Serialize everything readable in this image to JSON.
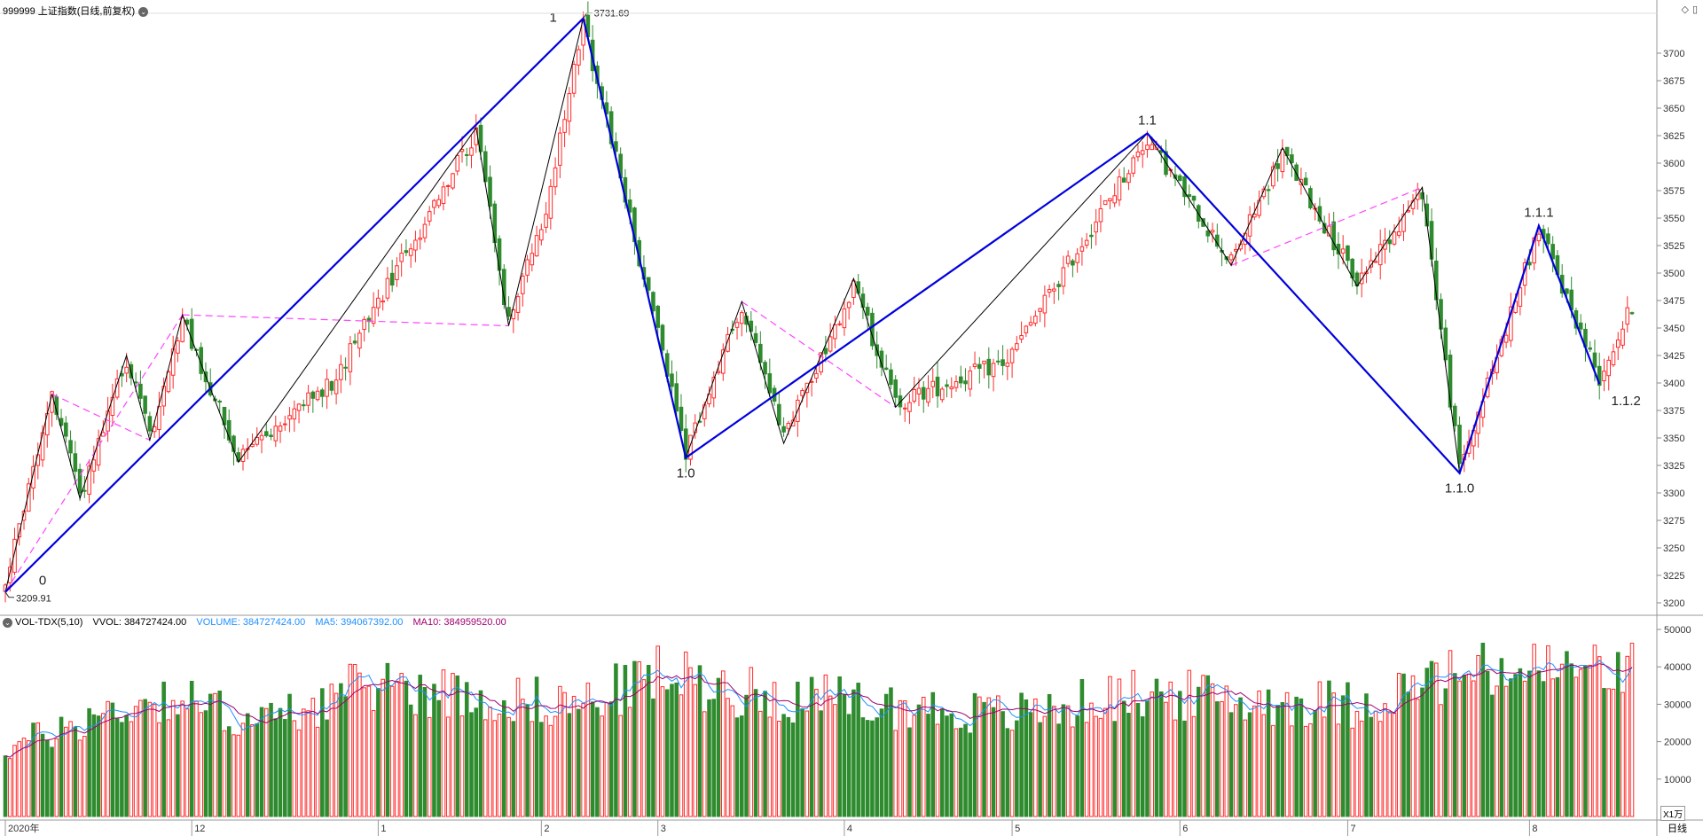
{
  "header": {
    "title": "999999 上证指数(日线,前复权)",
    "dropdown_icon": "chevron-down-icon",
    "right_icons": [
      "diamond-icon",
      "panel-icon"
    ]
  },
  "volume_header": {
    "indicator": "VOL-TDX(5,10)",
    "vvol": "VVOL: 384727424.00",
    "volume": "VOLUME: 384727424.00",
    "ma5": "MA5: 394067392.00",
    "ma10": "MA10: 384959520.00"
  },
  "colors": {
    "up": "#ff2a2a",
    "down": "#2e8b2e",
    "wave_primary": "#0000dd",
    "wave_minor": "#000000",
    "channel": "#ff44ff",
    "ma5": "#1e90ff",
    "ma10": "#a0006e",
    "grid": "#c8c8c8"
  },
  "chart_data": {
    "type": "candlestick",
    "price_axis": {
      "min": 3200,
      "max": 3725,
      "ticks": [
        3200,
        3225,
        3250,
        3275,
        3300,
        3325,
        3350,
        3375,
        3400,
        3425,
        3450,
        3475,
        3500,
        3525,
        3550,
        3575,
        3600,
        3625,
        3650,
        3675,
        3700
      ]
    },
    "volume_axis": {
      "min": 0,
      "max": 50000,
      "ticks": [
        10000,
        20000,
        30000,
        40000,
        50000
      ],
      "unit": "X1万"
    },
    "x_axis_labels": [
      "2020年",
      "12",
      "1",
      "2",
      "3",
      "4",
      "5",
      "6",
      "7",
      "8"
    ],
    "x_axis_label_bars": [
      0,
      40,
      80,
      115,
      140,
      180,
      216,
      252,
      288,
      327
    ],
    "period": "日线",
    "bar_count": 350,
    "price_labels": [
      {
        "text": "3731.69",
        "bar": 124
      },
      {
        "text": "3209.91",
        "bar": 0
      }
    ],
    "wave_pivots_primary": [
      {
        "label": "0",
        "bar": 0,
        "price": 3209.91
      },
      {
        "label": "1",
        "bar": 124,
        "price": 3731.69
      },
      {
        "label": "1.0",
        "bar": 146,
        "price": 3332
      },
      {
        "label": "1.1",
        "bar": 245,
        "price": 3627
      },
      {
        "label": "1.1.0",
        "bar": 312,
        "price": 3318
      },
      {
        "label": "1.1.1",
        "bar": 329,
        "price": 3543
      },
      {
        "label": "1.1.2",
        "bar": 342,
        "price": 3399
      }
    ],
    "wave_pivots_minor": [
      {
        "bar": 0,
        "price": 3209.91
      },
      {
        "bar": 10,
        "price": 3390
      },
      {
        "bar": 16,
        "price": 3295
      },
      {
        "bar": 26,
        "price": 3425
      },
      {
        "bar": 31,
        "price": 3348
      },
      {
        "bar": 38,
        "price": 3462
      },
      {
        "bar": 50,
        "price": 3328
      },
      {
        "bar": 101,
        "price": 3632
      },
      {
        "bar": 108,
        "price": 3452
      },
      {
        "bar": 124,
        "price": 3731.69
      },
      {
        "bar": 146,
        "price": 3332
      },
      {
        "bar": 158,
        "price": 3474
      },
      {
        "bar": 167,
        "price": 3345
      },
      {
        "bar": 182,
        "price": 3495
      },
      {
        "bar": 191,
        "price": 3378
      },
      {
        "bar": 245,
        "price": 3627
      },
      {
        "bar": 263,
        "price": 3507
      },
      {
        "bar": 274,
        "price": 3614
      },
      {
        "bar": 290,
        "price": 3488
      },
      {
        "bar": 304,
        "price": 3578
      },
      {
        "bar": 312,
        "price": 3318
      },
      {
        "bar": 329,
        "price": 3543
      },
      {
        "bar": 342,
        "price": 3399
      }
    ],
    "channel_lines": [
      {
        "from": {
          "bar": 0,
          "price": 3209.91
        },
        "to": {
          "bar": 38,
          "price": 3462
        }
      },
      {
        "from": {
          "bar": 10,
          "price": 3390
        },
        "to": {
          "bar": 31,
          "price": 3348
        }
      },
      {
        "from": {
          "bar": 38,
          "price": 3462
        },
        "to": {
          "bar": 108,
          "price": 3452
        }
      },
      {
        "from": {
          "bar": 158,
          "price": 3474
        },
        "to": {
          "bar": 191,
          "price": 3378
        }
      },
      {
        "from": {
          "bar": 263,
          "price": 3507
        },
        "to": {
          "bar": 304,
          "price": 3578
        }
      }
    ],
    "price_anchors": [
      [
        0,
        3215
      ],
      [
        10,
        3390
      ],
      [
        16,
        3298
      ],
      [
        26,
        3420
      ],
      [
        31,
        3352
      ],
      [
        38,
        3458
      ],
      [
        50,
        3335
      ],
      [
        70,
        3400
      ],
      [
        101,
        3628
      ],
      [
        108,
        3455
      ],
      [
        116,
        3560
      ],
      [
        124,
        3728
      ],
      [
        146,
        3335
      ],
      [
        158,
        3470
      ],
      [
        167,
        3350
      ],
      [
        182,
        3490
      ],
      [
        191,
        3382
      ],
      [
        215,
        3420
      ],
      [
        245,
        3622
      ],
      [
        263,
        3510
      ],
      [
        274,
        3610
      ],
      [
        290,
        3492
      ],
      [
        304,
        3575
      ],
      [
        312,
        3322
      ],
      [
        329,
        3540
      ],
      [
        342,
        3405
      ],
      [
        349,
        3470
      ]
    ],
    "volume_anchors": [
      [
        0,
        18000
      ],
      [
        20,
        27000
      ],
      [
        35,
        32000
      ],
      [
        55,
        25000
      ],
      [
        80,
        36000
      ],
      [
        100,
        32000
      ],
      [
        124,
        30000
      ],
      [
        140,
        38000
      ],
      [
        160,
        33000
      ],
      [
        185,
        30000
      ],
      [
        215,
        27000
      ],
      [
        245,
        33000
      ],
      [
        265,
        31000
      ],
      [
        290,
        30000
      ],
      [
        312,
        38000
      ],
      [
        329,
        39000
      ],
      [
        349,
        39000
      ]
    ]
  }
}
